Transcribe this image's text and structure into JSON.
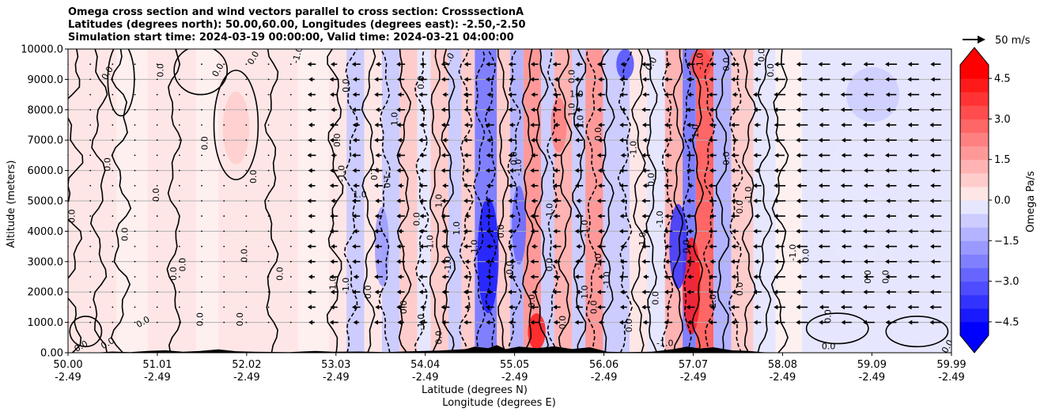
{
  "chart_data": {
    "type": "heatmap",
    "title": [
      "Omega cross section and wind vectors parallel to cross section: CrosssectionA",
      "Latitudes (degrees north): 50.00,60.00, Longitudes (degrees east): -2.50,-2.50",
      "Simulation start time: 2024-03-19 00:00:00, Valid time: 2024-03-21 04:00:00"
    ],
    "ylabel": "Altitude (meters)",
    "xlabel": "Latitude (degrees N)",
    "xlabel2": "Longitude (degrees E)",
    "xlim": [
      50.0,
      59.99
    ],
    "ylim": [
      0,
      10000
    ],
    "x_ticks": [
      {
        "lat": "50.00",
        "lon": "-2.49",
        "v": 50.0
      },
      {
        "lat": "51.01",
        "lon": "-2.49",
        "v": 51.01
      },
      {
        "lat": "52.02",
        "lon": "-2.49",
        "v": 52.02
      },
      {
        "lat": "53.03",
        "lon": "-2.49",
        "v": 53.03
      },
      {
        "lat": "54.04",
        "lon": "-2.49",
        "v": 54.04
      },
      {
        "lat": "55.05",
        "lon": "-2.49",
        "v": 55.05
      },
      {
        "lat": "56.06",
        "lon": "-2.49",
        "v": 56.06
      },
      {
        "lat": "57.07",
        "lon": "-2.49",
        "v": 57.07
      },
      {
        "lat": "58.08",
        "lon": "-2.49",
        "v": 58.08
      },
      {
        "lat": "59.09",
        "lon": "-2.49",
        "v": 59.09
      },
      {
        "lat": "59.99",
        "lon": "-2.49",
        "v": 59.99
      }
    ],
    "y_ticks": [
      {
        "label": "0.00",
        "v": 0
      },
      {
        "label": "1000.0",
        "v": 1000
      },
      {
        "label": "2000.0",
        "v": 2000
      },
      {
        "label": "3000.0",
        "v": 3000
      },
      {
        "label": "4000.0",
        "v": 4000
      },
      {
        "label": "5000.0",
        "v": 5000
      },
      {
        "label": "6000.0",
        "v": 6000
      },
      {
        "label": "7000.0",
        "v": 7000
      },
      {
        "label": "8000.0",
        "v": 8000
      },
      {
        "label": "9000.0",
        "v": 9000
      },
      {
        "label": "10000.0",
        "v": 10000
      }
    ],
    "grid": "horizontal",
    "colorbar": {
      "label": "Omega Pa/s",
      "range": [
        -5.0,
        5.0
      ],
      "step": 0.5,
      "extend": "both",
      "cmap": "bwr",
      "colors": {
        "neg": "#0000ff",
        "zero": "#ffffff",
        "pos": "#ff0000"
      },
      "ticks": [
        {
          "label": "4.5",
          "v": 4.5
        },
        {
          "label": "3.0",
          "v": 3.0
        },
        {
          "label": "1.5",
          "v": 1.5
        },
        {
          "label": "0.0",
          "v": 0.0
        },
        {
          "label": "−1.5",
          "v": -1.5
        },
        {
          "label": "−3.0",
          "v": -3.0
        },
        {
          "label": "−4.5",
          "v": -4.5
        }
      ]
    },
    "reference_vector": {
      "label": "50 m/s",
      "value": 50
    },
    "wind_vector_rows_m": [
      1000,
      1500,
      2000,
      2500,
      3000,
      3500,
      4000,
      4500,
      5000,
      5500,
      6000,
      6500,
      7000,
      7500,
      8000,
      8500,
      9000,
      9500
    ],
    "contour_labels": [
      {
        "text": "0.0",
        "lat": 50.05,
        "alt": 4500,
        "rot": -90
      },
      {
        "text": "0.0",
        "lat": 50.45,
        "alt": 6200,
        "rot": -90
      },
      {
        "text": "0.0",
        "lat": 50.45,
        "alt": 9200,
        "rot": -60
      },
      {
        "text": "0.0",
        "lat": 51.0,
        "alt": 5200,
        "rot": -90
      },
      {
        "text": "0.0",
        "lat": 51.05,
        "alt": 9300,
        "rot": -90
      },
      {
        "text": "0.0",
        "lat": 50.65,
        "alt": 3900,
        "rot": -90
      },
      {
        "text": "0.0",
        "lat": 51.3,
        "alt": 2900,
        "rot": -90
      },
      {
        "text": "0.0",
        "lat": 51.55,
        "alt": 6900,
        "rot": -90
      },
      {
        "text": "0.0",
        "lat": 51.7,
        "alt": 9300,
        "rot": -60
      },
      {
        "text": "0.0",
        "lat": 52.0,
        "alt": 3200,
        "rot": -90
      },
      {
        "text": "0.0",
        "lat": 52.1,
        "alt": 5800,
        "rot": -90
      },
      {
        "text": "0.0",
        "lat": 52.1,
        "alt": 9700,
        "rot": -60
      },
      {
        "text": "0.0",
        "lat": 52.4,
        "alt": 2600,
        "rot": -90
      },
      {
        "text": "0.0",
        "lat": 51.2,
        "alt": 2600,
        "rot": -90
      },
      {
        "text": "0.0",
        "lat": 50.85,
        "alt": 1000,
        "rot": -30
      },
      {
        "text": "0.0",
        "lat": 51.5,
        "alt": 1100,
        "rot": -90
      },
      {
        "text": "0.0",
        "lat": 51.95,
        "alt": 1100,
        "rot": -90
      },
      {
        "text": "0.0",
        "lat": 50.15,
        "alt": 200,
        "rot": -30
      },
      {
        "text": "0.0",
        "lat": 50.45,
        "alt": 300,
        "rot": -30
      },
      {
        "text": "0.0",
        "lat": 53.05,
        "alt": 7000,
        "rot": -90
      },
      {
        "text": "0.0",
        "lat": 53.15,
        "alt": 8800,
        "rot": -90
      },
      {
        "text": "-1.0",
        "lat": 52.6,
        "alt": 9800,
        "rot": -75
      },
      {
        "text": "-1.0",
        "lat": 53.1,
        "alt": 5900,
        "rot": -90
      },
      {
        "text": "1.0",
        "lat": 53.3,
        "alt": 5200,
        "rot": 0
      },
      {
        "text": "1.0",
        "lat": 53.45,
        "alt": 5900,
        "rot": 90
      },
      {
        "text": "-1.0",
        "lat": 53.6,
        "alt": 5700,
        "rot": 90
      },
      {
        "text": "1.0",
        "lat": 53.7,
        "alt": 7700,
        "rot": -90
      },
      {
        "text": "1.0",
        "lat": 53.0,
        "alt": 2300,
        "rot": -90
      },
      {
        "text": "0.0",
        "lat": 53.4,
        "alt": 2000,
        "rot": -90
      },
      {
        "text": "-1.0",
        "lat": 53.15,
        "alt": 2200,
        "rot": -90
      },
      {
        "text": "0.0",
        "lat": 53.95,
        "alt": 4400,
        "rot": -90
      },
      {
        "text": "0.0",
        "lat": 54.0,
        "alt": 8900,
        "rot": -90
      },
      {
        "text": "-1.0",
        "lat": 54.1,
        "alt": 3600,
        "rot": -90
      },
      {
        "text": "-1.0",
        "lat": 54.3,
        "alt": 9600,
        "rot": -60
      },
      {
        "text": "1.0",
        "lat": 54.2,
        "alt": 5000,
        "rot": -90
      },
      {
        "text": "1.0",
        "lat": 54.4,
        "alt": 4100,
        "rot": -90
      },
      {
        "text": "1.0",
        "lat": 54.6,
        "alt": 3500,
        "rot": -90
      },
      {
        "text": "0.0",
        "lat": 53.8,
        "alt": 1500,
        "rot": -90
      },
      {
        "text": "-1.0",
        "lat": 54.0,
        "alt": 1000,
        "rot": -90
      },
      {
        "text": "-1.0",
        "lat": 54.3,
        "alt": 2900,
        "rot": -90
      },
      {
        "text": "0.0",
        "lat": 54.2,
        "alt": 500,
        "rot": -90
      },
      {
        "text": "0.0",
        "lat": 54.9,
        "alt": 4000,
        "rot": -90
      },
      {
        "text": "0.0",
        "lat": 55.05,
        "alt": 6400,
        "rot": -90
      },
      {
        "text": "-1.0",
        "lat": 55.1,
        "alt": 6100,
        "rot": -90
      },
      {
        "text": "0.0",
        "lat": 55.0,
        "alt": 2800,
        "rot": -90
      },
      {
        "text": "0.0",
        "lat": 55.25,
        "alt": 1700,
        "rot": -90
      },
      {
        "text": "1.0",
        "lat": 55.45,
        "alt": 4700,
        "rot": -90
      },
      {
        "text": "0.0",
        "lat": 55.45,
        "alt": 2900,
        "rot": -90
      },
      {
        "text": "-1.0",
        "lat": 55.85,
        "alt": 4100,
        "rot": -90
      },
      {
        "text": "0.0",
        "lat": 55.7,
        "alt": 9100,
        "rot": -90
      },
      {
        "text": "1.0",
        "lat": 55.75,
        "alt": 8500,
        "rot": 0
      },
      {
        "text": "1.0",
        "lat": 55.85,
        "alt": 2000,
        "rot": -90
      },
      {
        "text": "1.0",
        "lat": 55.7,
        "alt": 8000,
        "rot": -90
      },
      {
        "text": "1.0",
        "lat": 55.8,
        "alt": 7600,
        "rot": -90
      },
      {
        "text": "0.0",
        "lat": 56.0,
        "alt": 7200,
        "rot": -90
      },
      {
        "text": "-1.0",
        "lat": 56.0,
        "alt": 3000,
        "rot": -90
      },
      {
        "text": "0.0",
        "lat": 55.6,
        "alt": 1000,
        "rot": -90
      },
      {
        "text": "0.0",
        "lat": 55.95,
        "alt": 1500,
        "rot": -90
      },
      {
        "text": "-1.0",
        "lat": 56.1,
        "alt": 2400,
        "rot": -90
      },
      {
        "text": "0.0",
        "lat": 56.35,
        "alt": 900,
        "rot": -90
      },
      {
        "text": "-1.0",
        "lat": 56.5,
        "alt": 3700,
        "rot": -90
      },
      {
        "text": "-1.0",
        "lat": 56.4,
        "alt": 6700,
        "rot": -90
      },
      {
        "text": "0.0",
        "lat": 56.6,
        "alt": 5700,
        "rot": -90
      },
      {
        "text": "0.0",
        "lat": 56.6,
        "alt": 9500,
        "rot": -60
      },
      {
        "text": "-1.0",
        "lat": 56.7,
        "alt": 4400,
        "rot": -90
      },
      {
        "text": "0.0",
        "lat": 56.65,
        "alt": 1800,
        "rot": -90
      },
      {
        "text": "-1.0",
        "lat": 57.15,
        "alt": 9600,
        "rot": -90
      },
      {
        "text": "1.0",
        "lat": 57.1,
        "alt": 7300,
        "rot": -90
      },
      {
        "text": "0.0",
        "lat": 57.0,
        "alt": 3500,
        "rot": -90
      },
      {
        "text": "1.0",
        "lat": 57.3,
        "alt": 1700,
        "rot": -90
      },
      {
        "text": "0.0",
        "lat": 57.45,
        "alt": 9500,
        "rot": -90
      },
      {
        "text": "0.0",
        "lat": 57.45,
        "alt": 6400,
        "rot": -90
      },
      {
        "text": "-1.0",
        "lat": 57.7,
        "alt": 5200,
        "rot": -90
      },
      {
        "text": "0.0",
        "lat": 57.6,
        "alt": 4800,
        "rot": -90
      },
      {
        "text": "0.0",
        "lat": 57.6,
        "alt": 2100,
        "rot": -90
      },
      {
        "text": "0.0",
        "lat": 57.95,
        "alt": 9300,
        "rot": -90
      },
      {
        "text": "0.0",
        "lat": 57.85,
        "alt": 9800,
        "rot": -90
      },
      {
        "text": "-1.0",
        "lat": 56.75,
        "alt": 300,
        "rot": 0
      },
      {
        "text": "-1.0",
        "lat": 58.2,
        "alt": 3300,
        "rot": -90
      },
      {
        "text": "0.0",
        "lat": 58.35,
        "alt": 3200,
        "rot": -90
      },
      {
        "text": "0.0",
        "lat": 59.05,
        "alt": 2500,
        "rot": -90
      },
      {
        "text": "0.0",
        "lat": 59.25,
        "alt": 2500,
        "rot": -90
      },
      {
        "text": "0.0",
        "lat": 58.6,
        "alt": 1200,
        "rot": -90
      },
      {
        "text": "0.0",
        "lat": 58.6,
        "alt": 200,
        "rot": 0
      },
      {
        "text": "0.0",
        "lat": 59.95,
        "alt": 200,
        "rot": -60
      }
    ]
  }
}
